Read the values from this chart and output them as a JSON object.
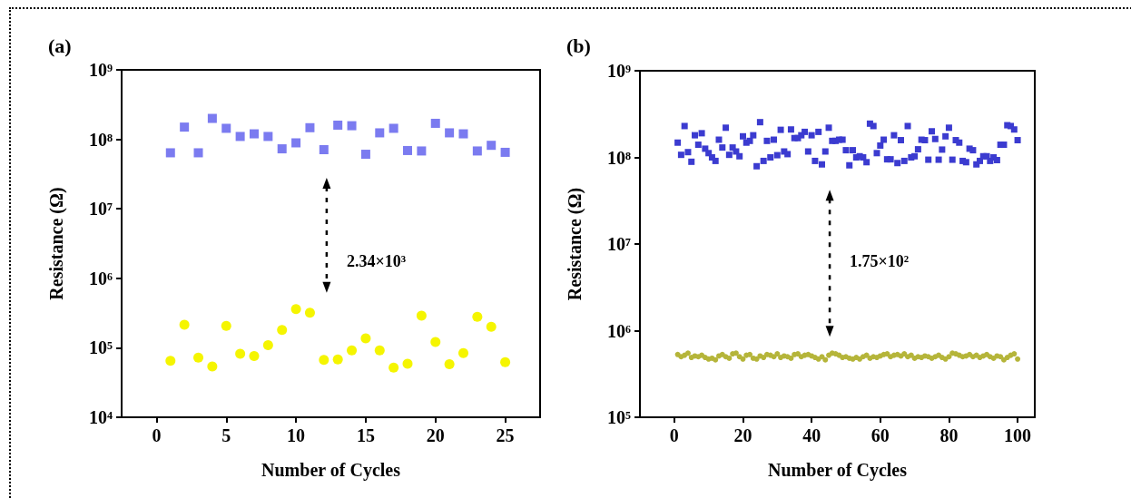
{
  "chart_data": [
    {
      "type": "scatter",
      "title": "(a)",
      "xlabel": "Number of Cycles",
      "ylabel": "Resistance (Ω)",
      "log": "y",
      "grid": false,
      "x": [
        1,
        2,
        3,
        4,
        5,
        6,
        7,
        8,
        9,
        10,
        11,
        12,
        13,
        14,
        15,
        16,
        17,
        18,
        19,
        20,
        21,
        22,
        23,
        24,
        25
      ],
      "xlim": [
        -2.5,
        27.5
      ],
      "xticks": [
        0,
        5,
        10,
        15,
        20,
        25
      ],
      "ylim": [
        10000,
        1000000000
      ],
      "yticks": [
        {
          "value": 10000,
          "label": "10⁴"
        },
        {
          "value": 100000,
          "label": "10⁵"
        },
        {
          "value": 1000000,
          "label": "10⁶"
        },
        {
          "value": 10000000,
          "label": "10⁷"
        },
        {
          "value": 100000000,
          "label": "10⁸"
        },
        {
          "value": 1000000000,
          "label": "10⁹"
        }
      ],
      "series": [
        {
          "color": "#7b7bf0",
          "marker": "square",
          "values": [
            64000000,
            150000000,
            64000000,
            200000000,
            144000000,
            110000000,
            120000000,
            110000000,
            73000000,
            89000000,
            147000000,
            71000000,
            160000000,
            157000000,
            61000000,
            124000000,
            144000000,
            69000000,
            68000000,
            170000000,
            124000000,
            120000000,
            68000000,
            82000000,
            65000000
          ]
        },
        {
          "color": "#f5f500",
          "marker": "circle",
          "values": [
            65000,
            215000,
            72000,
            54000,
            206000,
            82000,
            76000,
            109000,
            180000,
            360000,
            320000,
            67000,
            68000,
            92000,
            137000,
            92000,
            52000,
            59000,
            290000,
            121000,
            58000,
            84000,
            280000,
            200000,
            62000
          ]
        }
      ],
      "annotations": [
        "2.34×10³"
      ]
    },
    {
      "type": "scatter",
      "title": "(b)",
      "xlabel": "Number of Cycles",
      "ylabel": "Resistance (Ω)",
      "log": "y",
      "grid": false,
      "x": [
        1,
        2,
        3,
        4,
        5,
        6,
        7,
        8,
        9,
        10,
        11,
        12,
        13,
        14,
        15,
        16,
        17,
        18,
        19,
        20,
        21,
        22,
        23,
        24,
        25,
        26,
        27,
        28,
        29,
        30,
        31,
        32,
        33,
        34,
        35,
        36,
        37,
        38,
        39,
        40,
        41,
        42,
        43,
        44,
        45,
        46,
        47,
        48,
        49,
        50,
        51,
        52,
        53,
        54,
        55,
        56,
        57,
        58,
        59,
        60,
        61,
        62,
        63,
        64,
        65,
        66,
        67,
        68,
        69,
        70,
        71,
        72,
        73,
        74,
        75,
        76,
        77,
        78,
        79,
        80,
        81,
        82,
        83,
        84,
        85,
        86,
        87,
        88,
        89,
        90,
        91,
        92,
        93,
        94,
        95,
        96,
        97,
        98,
        99,
        100
      ],
      "xlim": [
        -10,
        105
      ],
      "xticks": [
        0,
        20,
        40,
        60,
        80,
        100
      ],
      "ylim": [
        100000,
        1000000000
      ],
      "yticks": [
        {
          "value": 100000,
          "label": "10⁵"
        },
        {
          "value": 1000000,
          "label": "10⁶"
        },
        {
          "value": 10000000,
          "label": "10⁷"
        },
        {
          "value": 100000000,
          "label": "10⁸"
        },
        {
          "value": 1000000000,
          "label": "10⁹"
        }
      ],
      "series": [
        {
          "color": "#3b3bd0",
          "marker": "square",
          "values": [
            148000000,
            107000000,
            230000000,
            115000000,
            89000000,
            180000000,
            140000000,
            190000000,
            126000000,
            112000000,
            100000000,
            91000000,
            160000000,
            130000000,
            220000000,
            107000000,
            130000000,
            117000000,
            103000000,
            175000000,
            148000000,
            155000000,
            180000000,
            79000000,
            255000000,
            91000000,
            155000000,
            100000000,
            160000000,
            106000000,
            208000000,
            117000000,
            109000000,
            210000000,
            167000000,
            167000000,
            180000000,
            197000000,
            117000000,
            180000000,
            91000000,
            197000000,
            83000000,
            117000000,
            220000000,
            155000000,
            155000000,
            160000000,
            160000000,
            121000000,
            81000000,
            121000000,
            100000000,
            103000000,
            100000000,
            88000000,
            245000000,
            230000000,
            112000000,
            137000000,
            160000000,
            95000000,
            95000000,
            180000000,
            86000000,
            158000000,
            91000000,
            230000000,
            100000000,
            103000000,
            124000000,
            160000000,
            158000000,
            94000000,
            200000000,
            163000000,
            94000000,
            123000000,
            175000000,
            220000000,
            94000000,
            158000000,
            148000000,
            91000000,
            88000000,
            126000000,
            121000000,
            83000000,
            91000000,
            103000000,
            103000000,
            91000000,
            100000000,
            93000000,
            140000000,
            140000000,
            235000000,
            230000000,
            210000000,
            158000000
          ]
        },
        {
          "color": "#b5b53a",
          "marker": "circle",
          "values": [
            530000,
            500000,
            520000,
            550000,
            490000,
            510000,
            500000,
            520000,
            490000,
            470000,
            480000,
            460000,
            510000,
            530000,
            500000,
            480000,
            540000,
            550000,
            500000,
            470000,
            520000,
            530000,
            480000,
            470000,
            510000,
            490000,
            530000,
            520000,
            500000,
            540000,
            490000,
            510000,
            500000,
            480000,
            530000,
            540000,
            500000,
            520000,
            530000,
            510000,
            490000,
            470000,
            500000,
            460000,
            520000,
            550000,
            540000,
            520000,
            490000,
            500000,
            480000,
            470000,
            490000,
            470000,
            500000,
            520000,
            480000,
            500000,
            490000,
            510000,
            530000,
            540000,
            500000,
            520000,
            530000,
            510000,
            540000,
            500000,
            520000,
            480000,
            500000,
            490000,
            510000,
            500000,
            480000,
            500000,
            520000,
            490000,
            470000,
            500000,
            550000,
            540000,
            520000,
            500000,
            510000,
            530000,
            500000,
            520000,
            490000,
            510000,
            530000,
            500000,
            480000,
            510000,
            500000,
            460000,
            490000,
            520000,
            540000,
            470000
          ]
        }
      ],
      "annotations": [
        "1.75×10²"
      ]
    }
  ]
}
